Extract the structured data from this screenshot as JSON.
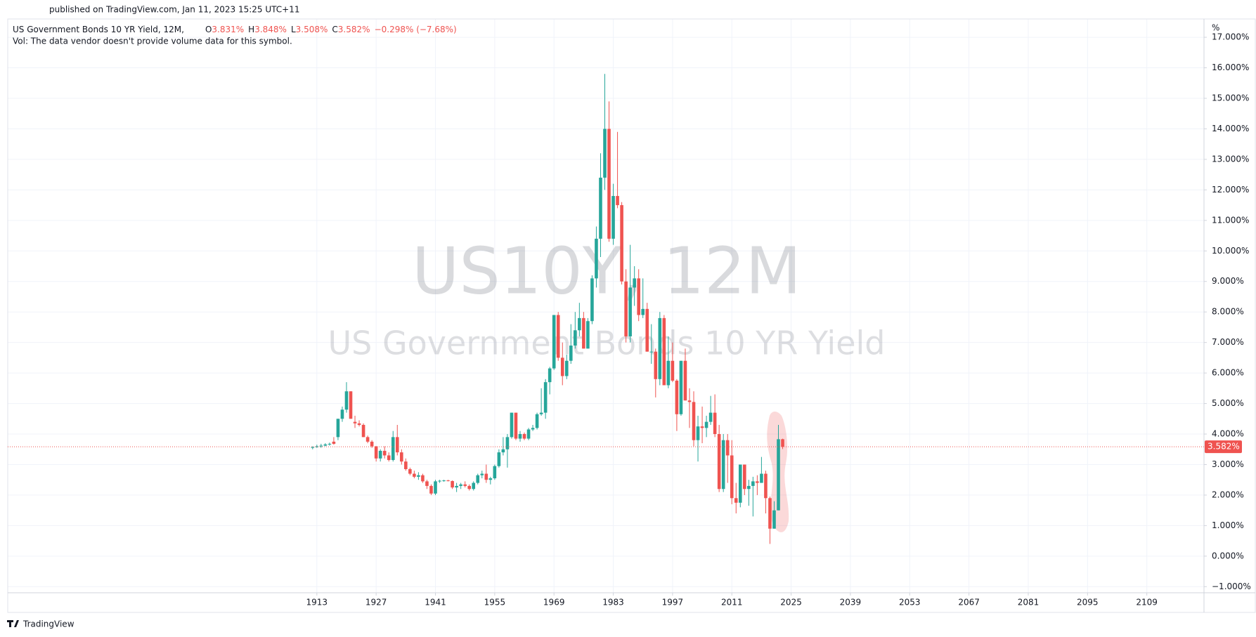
{
  "header": {
    "published": "published on TradingView.com, Jan 11, 2023 15:25 UTC+11"
  },
  "footer": {
    "brand": "TradingView"
  },
  "chart_data": {
    "type": "candlestick",
    "title": "US Government Bonds 10 YR Yield, 12M,",
    "ohlc_legend": [
      {
        "label": "O",
        "value": "3.831%"
      },
      {
        "label": "H",
        "value": "3.848%"
      },
      {
        "label": "L",
        "value": "3.508%"
      },
      {
        "label": "C",
        "value": "3.582%"
      }
    ],
    "change": "−0.298% (−7.68%)",
    "volume_note": "Vol: The data vendor doesn't provide volume data for this symbol.",
    "watermark_symbol": "US10Y, 12M",
    "watermark_name": "US Government Bonds 10 YR Yield",
    "y_unit": "%",
    "last_price": {
      "value": 3.582,
      "label": "3.582%"
    },
    "x": [
      1912,
      1913,
      1914,
      1915,
      1916,
      1917,
      1918,
      1919,
      1920,
      1921,
      1922,
      1923,
      1924,
      1925,
      1926,
      1927,
      1928,
      1929,
      1930,
      1931,
      1932,
      1933,
      1934,
      1935,
      1936,
      1937,
      1938,
      1939,
      1940,
      1941,
      1942,
      1943,
      1944,
      1945,
      1946,
      1947,
      1948,
      1949,
      1950,
      1951,
      1952,
      1953,
      1954,
      1955,
      1956,
      1957,
      1958,
      1959,
      1960,
      1961,
      1962,
      1963,
      1964,
      1965,
      1966,
      1967,
      1968,
      1969,
      1970,
      1971,
      1972,
      1973,
      1974,
      1975,
      1976,
      1977,
      1978,
      1979,
      1980,
      1981,
      1982,
      1983,
      1984,
      1985,
      1986,
      1987,
      1988,
      1989,
      1990,
      1991,
      1992,
      1993,
      1994,
      1995,
      1996,
      1997,
      1998,
      1999,
      2000,
      2001,
      2002,
      2003,
      2004,
      2005,
      2006,
      2007,
      2008,
      2009,
      2010,
      2011,
      2012,
      2013,
      2014,
      2015,
      2016,
      2017,
      2018,
      2019,
      2020,
      2021,
      2022,
      2023
    ],
    "series": [
      {
        "name": "US10Y",
        "up_color": "#26a69a",
        "down_color": "#ef5350",
        "open": [
          3.55,
          3.57,
          3.6,
          3.62,
          3.66,
          3.75,
          3.9,
          4.5,
          4.8,
          5.4,
          4.4,
          4.35,
          4.3,
          3.9,
          3.75,
          3.6,
          3.2,
          3.45,
          3.3,
          3.15,
          3.9,
          3.4,
          3.1,
          2.85,
          2.7,
          2.6,
          2.65,
          2.45,
          2.3,
          2.05,
          2.45,
          2.47,
          2.48,
          2.46,
          2.25,
          2.3,
          2.35,
          2.3,
          2.2,
          2.4,
          2.65,
          2.7,
          2.5,
          2.55,
          2.95,
          3.4,
          3.5,
          3.9,
          4.7,
          3.85,
          4.0,
          3.85,
          4.15,
          4.2,
          4.65,
          4.7,
          5.7,
          6.15,
          7.9,
          6.5,
          5.9,
          6.4,
          6.9,
          7.4,
          7.8,
          6.8,
          7.7,
          9.1,
          10.4,
          12.4,
          14.0,
          10.4,
          11.8,
          11.5,
          9.0,
          7.2,
          8.8,
          9.1,
          7.9,
          8.1,
          6.7,
          6.7,
          5.8,
          7.8,
          5.6,
          6.4,
          5.75,
          4.65,
          6.4,
          5.1,
          5.05,
          3.8,
          4.25,
          4.2,
          4.4,
          4.7,
          4.0,
          2.2,
          3.8,
          3.3,
          1.9,
          1.75,
          3.0,
          2.2,
          2.3,
          2.45,
          2.4,
          2.7,
          1.9,
          0.9,
          1.5,
          3.831
        ],
        "high": [
          3.6,
          3.65,
          3.68,
          3.7,
          3.72,
          3.9,
          4.5,
          4.9,
          5.7,
          5.4,
          4.6,
          4.45,
          4.35,
          3.95,
          3.8,
          3.6,
          3.5,
          3.6,
          3.4,
          4.1,
          4.3,
          3.5,
          3.2,
          2.9,
          2.8,
          2.75,
          2.7,
          2.5,
          2.35,
          2.5,
          2.5,
          2.5,
          2.5,
          2.48,
          2.4,
          2.4,
          2.45,
          2.35,
          2.45,
          2.7,
          2.8,
          3.0,
          2.6,
          3.0,
          3.5,
          3.9,
          4.0,
          4.7,
          4.7,
          4.1,
          4.05,
          4.2,
          4.3,
          4.7,
          5.5,
          5.8,
          6.2,
          7.9,
          8.0,
          7.0,
          6.6,
          7.6,
          8.0,
          8.3,
          8.0,
          7.8,
          9.2,
          10.8,
          13.2,
          15.8,
          14.9,
          12.2,
          13.9,
          11.6,
          9.4,
          10.2,
          9.5,
          9.4,
          9.1,
          8.3,
          7.6,
          6.8,
          8.0,
          7.9,
          7.2,
          7.0,
          5.8,
          6.4,
          6.8,
          5.5,
          5.4,
          4.6,
          4.9,
          4.6,
          5.25,
          5.3,
          4.3,
          4.0,
          4.0,
          3.8,
          2.4,
          3.0,
          3.0,
          2.5,
          2.6,
          2.65,
          3.25,
          2.8,
          1.95,
          1.8,
          4.3,
          3.848
        ],
        "low": [
          3.5,
          3.55,
          3.55,
          3.6,
          3.62,
          3.65,
          3.8,
          4.4,
          4.7,
          4.5,
          4.2,
          4.25,
          3.9,
          3.7,
          3.55,
          3.1,
          3.1,
          3.2,
          3.1,
          3.1,
          3.3,
          3.0,
          2.8,
          2.65,
          2.55,
          2.5,
          2.4,
          2.2,
          2.0,
          2.0,
          2.4,
          2.44,
          2.45,
          2.2,
          2.1,
          2.2,
          2.25,
          2.15,
          2.15,
          2.35,
          2.55,
          2.4,
          2.35,
          2.5,
          2.9,
          3.3,
          2.9,
          3.85,
          3.8,
          3.75,
          3.8,
          3.8,
          4.1,
          4.15,
          4.6,
          4.5,
          5.3,
          6.1,
          6.4,
          5.6,
          5.8,
          6.3,
          6.8,
          7.2,
          6.8,
          6.8,
          7.6,
          8.8,
          9.8,
          12.0,
          10.3,
          10.2,
          11.4,
          8.9,
          7.0,
          7.0,
          8.2,
          7.7,
          7.8,
          6.7,
          6.3,
          5.2,
          5.6,
          5.6,
          5.5,
          5.7,
          4.1,
          4.6,
          5.1,
          4.2,
          3.6,
          3.1,
          3.7,
          3.9,
          4.3,
          3.9,
          2.1,
          2.1,
          2.4,
          1.7,
          1.4,
          1.6,
          2.0,
          1.65,
          1.3,
          2.0,
          2.4,
          1.4,
          0.4,
          0.9,
          1.5,
          3.508
        ],
        "close": [
          3.57,
          3.6,
          3.62,
          3.66,
          3.68,
          3.68,
          4.5,
          4.8,
          5.4,
          4.5,
          4.35,
          4.3,
          3.9,
          3.75,
          3.6,
          3.2,
          3.45,
          3.3,
          3.15,
          3.9,
          3.4,
          3.1,
          2.85,
          2.7,
          2.6,
          2.65,
          2.45,
          2.3,
          2.05,
          2.45,
          2.47,
          2.48,
          2.46,
          2.25,
          2.3,
          2.35,
          2.3,
          2.2,
          2.4,
          2.65,
          2.7,
          2.5,
          2.55,
          2.95,
          3.4,
          3.5,
          3.9,
          4.7,
          3.85,
          4.0,
          3.85,
          4.15,
          4.2,
          4.65,
          4.7,
          5.7,
          6.15,
          7.9,
          6.5,
          5.9,
          6.4,
          6.9,
          7.4,
          7.8,
          6.8,
          7.7,
          9.1,
          10.4,
          12.4,
          14.0,
          10.4,
          11.8,
          11.5,
          9.0,
          7.2,
          8.8,
          9.1,
          7.9,
          8.1,
          6.7,
          6.7,
          5.8,
          7.8,
          5.6,
          6.4,
          5.75,
          4.65,
          6.4,
          5.1,
          5.05,
          3.8,
          4.25,
          4.2,
          4.4,
          4.7,
          4.0,
          2.2,
          3.8,
          3.3,
          1.9,
          1.75,
          3.0,
          2.2,
          2.3,
          2.45,
          2.4,
          2.7,
          1.9,
          0.9,
          1.5,
          3.831,
          3.582
        ]
      }
    ],
    "xlim": [
      1840,
      2122.5
    ],
    "xticks": [
      1913,
      1927,
      1941,
      1955,
      1969,
      1983,
      1997,
      2011,
      2025,
      2039,
      2053,
      2067,
      2081,
      2095,
      2109
    ],
    "ylim": [
      -1.2,
      17.6
    ],
    "yticks": [
      {
        "value": -1,
        "label": "−1.000%"
      },
      {
        "value": 0,
        "label": "0.000%"
      },
      {
        "value": 1,
        "label": "1.000%"
      },
      {
        "value": 2,
        "label": "2.000%"
      },
      {
        "value": 3,
        "label": "3.000%"
      },
      {
        "value": 4,
        "label": "4.000%"
      },
      {
        "value": 5,
        "label": "5.000%"
      },
      {
        "value": 6,
        "label": "6.000%"
      },
      {
        "value": 7,
        "label": "7.000%"
      },
      {
        "value": 8,
        "label": "8.000%"
      },
      {
        "value": 9,
        "label": "9.000%"
      },
      {
        "value": 10,
        "label": "10.000%"
      },
      {
        "value": 11,
        "label": "11.000%"
      },
      {
        "value": 12,
        "label": "12.000%"
      },
      {
        "value": 13,
        "label": "13.000%"
      },
      {
        "value": 14,
        "label": "14.000%"
      },
      {
        "value": 15,
        "label": "15.000%"
      },
      {
        "value": 16,
        "label": "16.000%"
      },
      {
        "value": 17,
        "label": "17.000%"
      }
    ],
    "grid": true
  }
}
